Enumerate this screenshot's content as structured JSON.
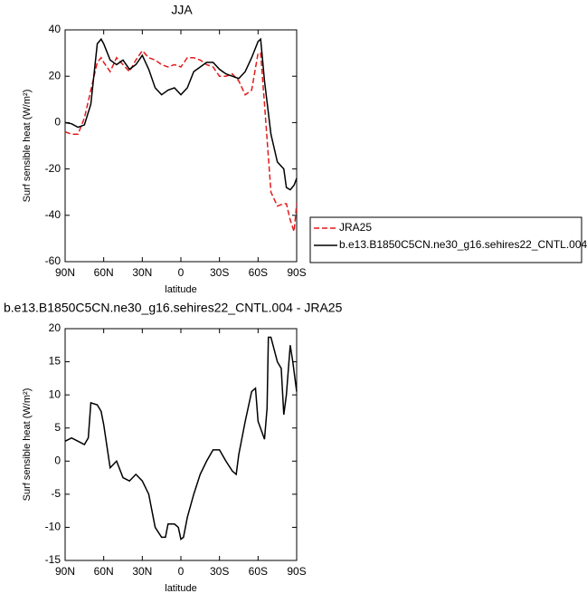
{
  "chart_data": [
    {
      "type": "line",
      "title": "JJA",
      "xlabel": "latitude",
      "ylabel": "Surf sensible heat (W/m²)",
      "x": [
        90,
        85,
        80,
        75,
        70,
        65,
        62,
        60,
        55,
        50,
        45,
        40,
        35,
        30,
        25,
        20,
        15,
        10,
        5,
        0,
        -5,
        -10,
        -15,
        -20,
        -25,
        -30,
        -35,
        -40,
        -45,
        -50,
        -55,
        -60,
        -62,
        -65,
        -70,
        -75,
        -80,
        -82,
        -85,
        -88,
        -90
      ],
      "series": [
        {
          "name": "JRA25",
          "color": "#e41a1c",
          "dash": true,
          "values": [
            -4,
            -5,
            -5,
            2,
            14,
            26,
            28,
            26,
            22,
            28,
            25,
            22,
            27,
            31,
            28,
            27,
            25,
            24,
            25,
            24,
            28,
            28,
            27,
            25,
            24,
            20,
            20,
            21,
            18,
            12,
            14,
            30,
            30,
            8,
            -30,
            -36,
            -35,
            -35,
            -42,
            -47,
            -35
          ]
        },
        {
          "name": "b.e13.B1850C5CN.ne30_g16.sehires22_CNTL.004",
          "color": "#000000",
          "dash": false,
          "values": [
            0,
            -0.5,
            -2,
            -1,
            8,
            34,
            36,
            34,
            27,
            25,
            27,
            23,
            25,
            29,
            23,
            15,
            12,
            14,
            15,
            12,
            15,
            22,
            24,
            26,
            26,
            23,
            21,
            20,
            19,
            22,
            28,
            35,
            36,
            18,
            -5,
            -17,
            -20,
            -28,
            -29,
            -27,
            -24
          ]
        }
      ],
      "xlim": [
        90,
        -90
      ],
      "xticks": [
        {
          "value": 90,
          "label": "90N"
        },
        {
          "value": 60,
          "label": "60N"
        },
        {
          "value": 30,
          "label": "30N"
        },
        0,
        {
          "value": -30,
          "label": "30S"
        },
        {
          "value": -60,
          "label": "60S"
        },
        {
          "value": -90,
          "label": "90S"
        }
      ],
      "ylim": [
        -60,
        40
      ],
      "yticks": [
        -60,
        -40,
        -20,
        0,
        20,
        40
      ],
      "legend": "outside-right"
    },
    {
      "type": "line",
      "title": "b.e13.B1850C5CN.ne30_g16.sehires22_CNTL.004 - JRA25",
      "xlabel": "latitude",
      "ylabel": "Surf sensible heat (W/m²)",
      "x": [
        90,
        85,
        80,
        75,
        72,
        70,
        65,
        62,
        60,
        55,
        50,
        45,
        40,
        35,
        30,
        25,
        20,
        15,
        12,
        10,
        5,
        2,
        0,
        -2,
        -5,
        -10,
        -15,
        -20,
        -25,
        -30,
        -35,
        -40,
        -43,
        -45,
        -50,
        -55,
        -58,
        -60,
        -65,
        -67,
        -68,
        -70,
        -75,
        -78,
        -80,
        -82,
        -85,
        -87,
        -90
      ],
      "series": [
        {
          "color": "#000000",
          "dash": false,
          "values": [
            3,
            3.5,
            3,
            2.5,
            3.5,
            8.8,
            8.5,
            7.5,
            5.5,
            -1,
            0,
            -2.5,
            -3,
            -2,
            -3,
            -5,
            -10,
            -11.5,
            -11.5,
            -9.5,
            -9.5,
            -10,
            -11.8,
            -11.5,
            -8.5,
            -5,
            -2,
            0,
            1.7,
            1.7,
            0,
            -1.5,
            -2,
            1,
            6,
            10.5,
            11,
            6,
            3.3,
            8,
            18.7,
            18.7,
            15,
            14,
            7,
            10,
            17.5,
            15,
            10.5
          ]
        }
      ],
      "xlim": [
        90,
        -90
      ],
      "xticks": [
        {
          "value": 90,
          "label": "90N"
        },
        {
          "value": 60,
          "label": "60N"
        },
        {
          "value": 30,
          "label": "30N"
        },
        0,
        {
          "value": -30,
          "label": "30S"
        },
        {
          "value": -60,
          "label": "60S"
        },
        {
          "value": -90,
          "label": "90S"
        }
      ],
      "ylim": [
        -15,
        20
      ],
      "yticks": [
        -15,
        -10,
        -5,
        0,
        5,
        10,
        15,
        20
      ]
    }
  ]
}
